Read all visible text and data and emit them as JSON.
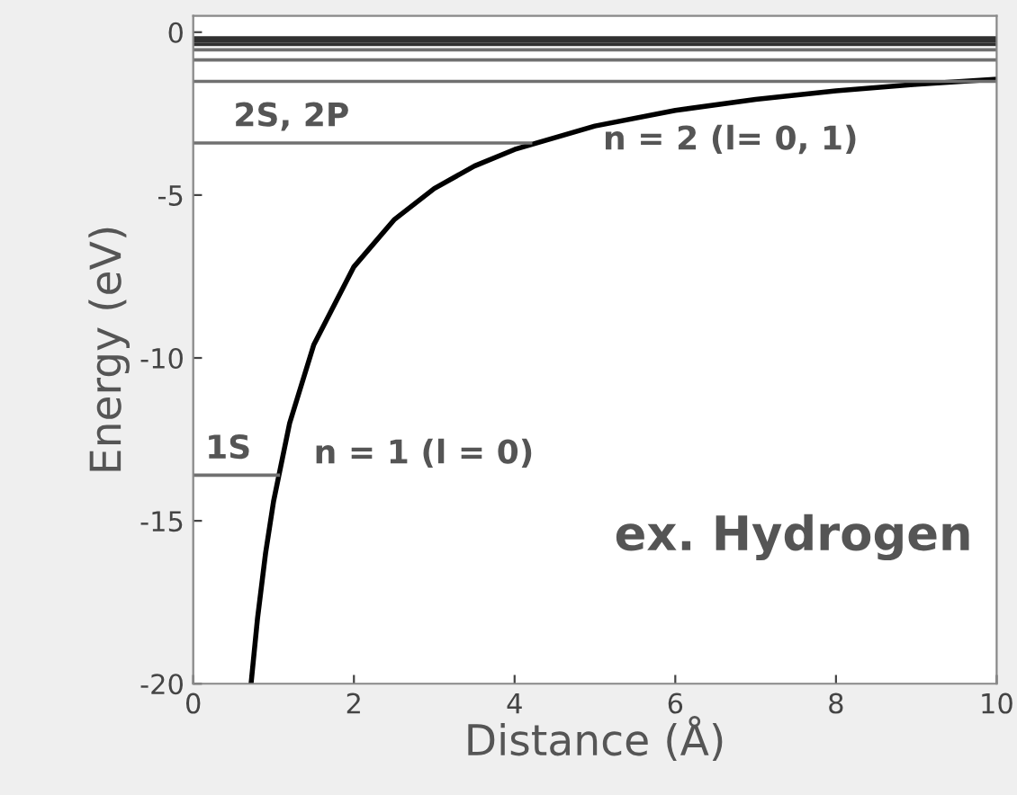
{
  "chart_data": {
    "type": "line",
    "xlabel": "Distance (Å)",
    "ylabel": "Energy (eV)",
    "xlim": [
      0,
      10
    ],
    "ylim": [
      -20,
      0.5
    ],
    "xticks": [
      0,
      2,
      4,
      6,
      8,
      10
    ],
    "yticks": [
      -20,
      -15,
      -10,
      -5,
      0
    ],
    "grid": false,
    "legend": false,
    "marker": "none",
    "line_style": "solid",
    "series": [
      {
        "color": "#000000",
        "x": [
          0.72,
          0.8,
          0.9,
          1,
          1.2,
          1.5,
          2,
          2.5,
          3,
          3.5,
          4,
          5,
          6,
          7,
          8,
          9,
          10
        ],
        "values": [
          -20,
          -18,
          -16,
          -14.4,
          -12,
          -9.6,
          -7.2,
          -5.76,
          -4.8,
          -4.11,
          -3.6,
          -2.88,
          -2.4,
          -2.06,
          -1.8,
          -1.6,
          -1.44
        ]
      },
      {
        "color": "#707070",
        "x": [
          0,
          1.06
        ],
        "values": [
          -13.6,
          -13.6
        ]
      },
      {
        "color": "#707070",
        "x": [
          0,
          4.2
        ],
        "values": [
          -3.4,
          -3.4
        ]
      },
      {
        "color": "#707070",
        "x": [
          0,
          10
        ],
        "values": [
          -1.51,
          -1.51
        ]
      },
      {
        "color": "#707070",
        "x": [
          0,
          10
        ],
        "values": [
          -0.85,
          -0.85
        ]
      },
      {
        "color": "#707070",
        "x": [
          0,
          10
        ],
        "values": [
          -0.54,
          -0.54
        ]
      },
      {
        "color": "#303030",
        "x": [
          0,
          10
        ],
        "values": [
          -0.38,
          -0.38
        ]
      },
      {
        "color": "#303030",
        "x": [
          0,
          10
        ],
        "values": [
          -0.28,
          -0.28
        ]
      },
      {
        "color": "#303030",
        "x": [
          0,
          10
        ],
        "values": [
          -0.21,
          -0.21
        ]
      },
      {
        "color": "#303030",
        "x": [
          0,
          10
        ],
        "values": [
          -0.17,
          -0.17
        ]
      }
    ],
    "annotations": [
      {
        "text": "1S",
        "x": 0.15,
        "y": -13.6
      },
      {
        "text": "2S, 2P",
        "x": 0.5,
        "y": -3.4
      },
      "n = 1 (l = 0)",
      "n = 2 (l= 0, 1)",
      "ex. Hydrogen"
    ]
  }
}
